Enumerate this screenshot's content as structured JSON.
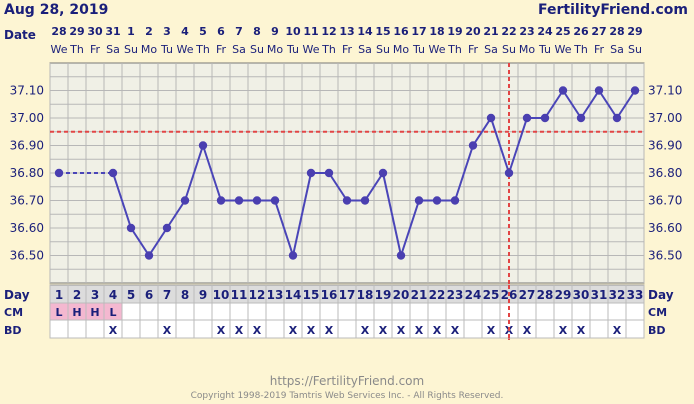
{
  "header": {
    "date": "Aug 28, 2019",
    "site": "FertilityFriend.com",
    "date_label": "Date"
  },
  "footer": {
    "url": "https://FertilityFriend.com",
    "copyright": "Copyright 1998-2019 Tamtris Web Services Inc. - All Rights Reserved."
  },
  "chart_data": {
    "type": "line",
    "dates": [
      "28",
      "29",
      "30",
      "31",
      "1",
      "2",
      "3",
      "4",
      "5",
      "6",
      "7",
      "8",
      "9",
      "10",
      "11",
      "12",
      "13",
      "14",
      "15",
      "16",
      "17",
      "18",
      "19",
      "20",
      "21",
      "22",
      "23",
      "24",
      "25",
      "26",
      "27",
      "28",
      "29"
    ],
    "weekdays": [
      "We",
      "Th",
      "Fr",
      "Sa",
      "Su",
      "Mo",
      "Tu",
      "We",
      "Th",
      "Fr",
      "Sa",
      "Su",
      "Mo",
      "Tu",
      "We",
      "Th",
      "Fr",
      "Sa",
      "Su",
      "Mo",
      "Tu",
      "We",
      "Th",
      "Fr",
      "Sa",
      "Su",
      "Mo",
      "Tu",
      "We",
      "Th",
      "Fr",
      "Sa",
      "Su"
    ],
    "days": [
      1,
      2,
      3,
      4,
      5,
      6,
      7,
      8,
      9,
      10,
      11,
      12,
      13,
      14,
      15,
      16,
      17,
      18,
      19,
      20,
      21,
      22,
      23,
      24,
      25,
      26,
      27,
      28,
      29,
      30,
      31,
      32,
      33
    ],
    "temps": [
      36.8,
      null,
      null,
      36.8,
      36.6,
      36.5,
      36.6,
      36.7,
      36.9,
      36.7,
      36.7,
      36.7,
      36.7,
      36.5,
      36.8,
      36.8,
      36.7,
      36.7,
      36.8,
      36.5,
      36.7,
      36.7,
      36.7,
      36.9,
      37.0,
      36.8,
      37.0,
      37.0,
      37.1,
      37.0,
      37.1,
      37.0,
      37.1
    ],
    "y_ticks": [
      "37.10",
      "37.00",
      "36.90",
      "36.80",
      "36.70",
      "36.60",
      "36.50"
    ],
    "ylim": [
      36.4,
      37.2
    ],
    "coverline": 36.95,
    "ovulation_day": 26,
    "cm": [
      "L",
      "H",
      "H",
      "L",
      "",
      "",
      "",
      "",
      "",
      "",
      "",
      "",
      "",
      "",
      "",
      "",
      "",
      "",
      "",
      "",
      "",
      "",
      "",
      "",
      "",
      "",
      "",
      "",
      "",
      "",
      "",
      "",
      ""
    ],
    "cm_color": "#f4b8d0",
    "bd": [
      "",
      "",
      "",
      "X",
      "",
      "",
      "X",
      "",
      "",
      "X",
      "X",
      "X",
      "",
      "X",
      "X",
      "X",
      "",
      "X",
      "X",
      "X",
      "X",
      "X",
      "X",
      "",
      "X",
      "X",
      "X",
      "",
      "X",
      "X",
      "",
      "X",
      ""
    ],
    "row_labels": {
      "day": "Day",
      "cm": "CM",
      "bd": "BD"
    },
    "colors": {
      "line": "#4a45b8",
      "marker": "#4a3fb0",
      "coverline": "#e24545",
      "grid": "#b7b7b7",
      "plot_bg": "#f0f0e6"
    }
  }
}
